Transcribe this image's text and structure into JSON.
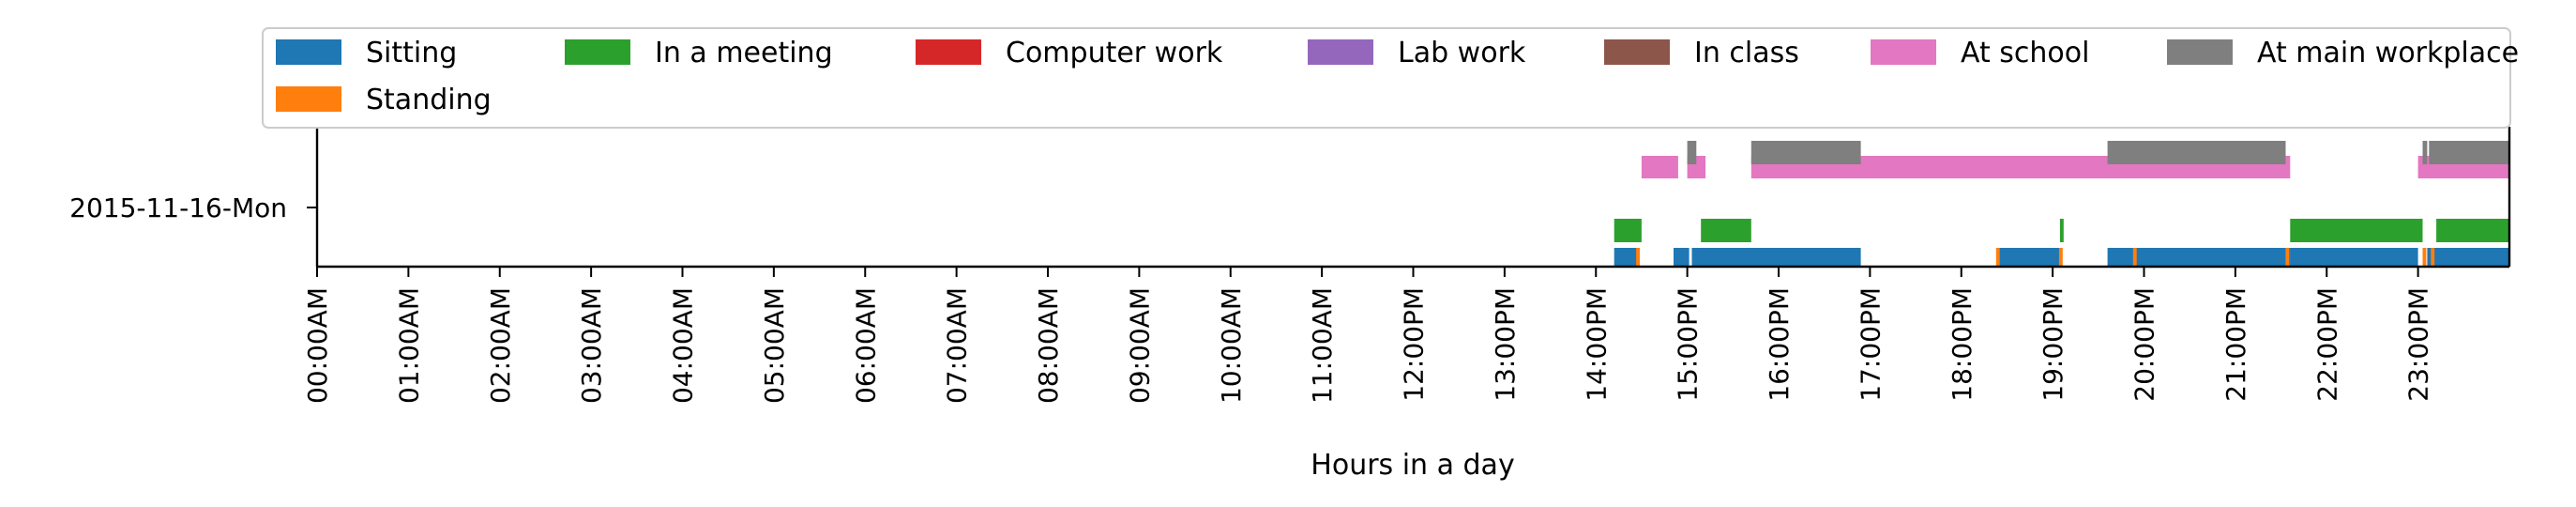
{
  "chart_data": {
    "type": "timeline",
    "xlabel": "Hours in a day",
    "ylabel": "",
    "xlim": [
      0,
      24
    ],
    "grid": false,
    "legend_position": "top",
    "categories": [
      "2015-11-16-Mon"
    ],
    "x_tick_labels": [
      "00:00AM",
      "01:00AM",
      "02:00AM",
      "03:00AM",
      "04:00AM",
      "05:00AM",
      "06:00AM",
      "07:00AM",
      "08:00AM",
      "09:00AM",
      "10:00AM",
      "11:00AM",
      "12:00PM",
      "13:00PM",
      "14:00PM",
      "15:00PM",
      "16:00PM",
      "17:00PM",
      "18:00PM",
      "19:00PM",
      "20:00PM",
      "21:00PM",
      "22:00PM",
      "23:00PM"
    ],
    "series": [
      {
        "name": "Sitting",
        "color": "#1f77b4",
        "lane": 0,
        "intervals": [
          [
            14.2,
            14.45
          ],
          [
            14.85,
            15.02
          ],
          [
            15.05,
            16.9
          ],
          [
            18.4,
            19.08
          ],
          [
            19.6,
            21.6
          ],
          [
            21.6,
            23.0
          ],
          [
            23.1,
            23.15
          ],
          [
            23.15,
            24.0
          ]
        ]
      },
      {
        "name": "Standing",
        "color": "#ff7f0e",
        "lane": 0,
        "intervals": [
          [
            14.44,
            14.48
          ],
          [
            18.38,
            18.42
          ],
          [
            19.07,
            19.11
          ],
          [
            19.88,
            19.92
          ],
          [
            21.55,
            21.59
          ],
          [
            23.05,
            23.09
          ],
          [
            23.14,
            23.18
          ]
        ]
      },
      {
        "name": "In a meeting",
        "color": "#2ca02c",
        "lane": 1,
        "intervals": [
          [
            14.2,
            14.5
          ],
          [
            15.15,
            15.7
          ],
          [
            19.08,
            19.12
          ],
          [
            21.6,
            23.05
          ],
          [
            23.2,
            24.0
          ]
        ]
      },
      {
        "name": "Computer work",
        "color": "#d62728",
        "lane": 1,
        "intervals": []
      },
      {
        "name": "Lab work",
        "color": "#9467bd",
        "lane": 1,
        "intervals": []
      },
      {
        "name": "In class",
        "color": "#8c564b",
        "lane": 1,
        "intervals": []
      },
      {
        "name": "At school",
        "color": "#e377c2",
        "lane": 2,
        "intervals": [
          [
            14.5,
            14.9
          ],
          [
            15.0,
            15.2
          ],
          [
            15.7,
            21.6
          ],
          [
            23.0,
            24.0
          ]
        ]
      },
      {
        "name": "At main workplace",
        "color": "#7f7f7f",
        "lane": 3,
        "intervals": [
          [
            15.0,
            15.1
          ],
          [
            15.7,
            16.9
          ],
          [
            19.6,
            21.55
          ],
          [
            23.05,
            23.1
          ],
          [
            23.12,
            24.0
          ]
        ]
      }
    ],
    "legend_order": [
      "Sitting",
      "In a meeting",
      "Computer work",
      "Lab work",
      "In class",
      "At school",
      "At main workplace",
      "Standing"
    ]
  }
}
